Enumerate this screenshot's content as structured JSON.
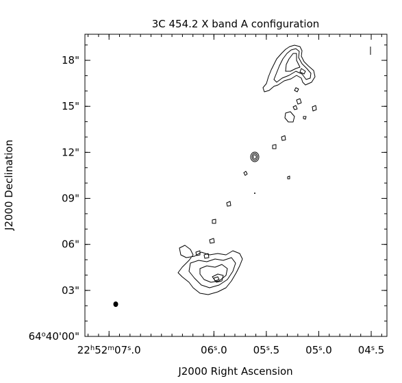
{
  "chart_data": {
    "type": "contour",
    "title": "3C 454.2 X band A configuration",
    "xlabel": "J2000 Right Ascension",
    "ylabel": "J2000 Declination",
    "x_axis": {
      "unit": "seconds of RA (22h52m)",
      "range": [
        7.23,
        4.35
      ],
      "ticks": [
        {
          "value": 7.0,
          "label": "22h52m07s.0"
        },
        {
          "value": 6.0,
          "label": "06s.0"
        },
        {
          "value": 5.5,
          "label": "05s.5"
        },
        {
          "value": 5.0,
          "label": "05s.0"
        },
        {
          "value": 4.5,
          "label": "04s.5"
        }
      ]
    },
    "y_axis": {
      "unit": "arcsec offset from 64°40'00\"",
      "range": [
        0.0,
        19.7
      ],
      "ticks": [
        {
          "value": 0,
          "label": "64°40'00\""
        },
        {
          "value": 3,
          "label": "03\""
        },
        {
          "value": 6,
          "label": "06\""
        },
        {
          "value": 9,
          "label": "09\""
        },
        {
          "value": 12,
          "label": "12\""
        },
        {
          "value": 15,
          "label": "15\""
        },
        {
          "value": 18,
          "label": "18\""
        }
      ]
    },
    "features": [
      {
        "name": "core",
        "ra_s": 5.53,
        "dec": 11.95
      },
      {
        "name": "north-lobe",
        "ra_s": 5.05,
        "dec": 17.9
      },
      {
        "name": "south-lobe",
        "ra_s": 5.85,
        "dec": 4.0
      }
    ],
    "beam": {
      "ra_s": 7.0,
      "dec": 2.0
    },
    "grid": false,
    "legend": "none"
  }
}
